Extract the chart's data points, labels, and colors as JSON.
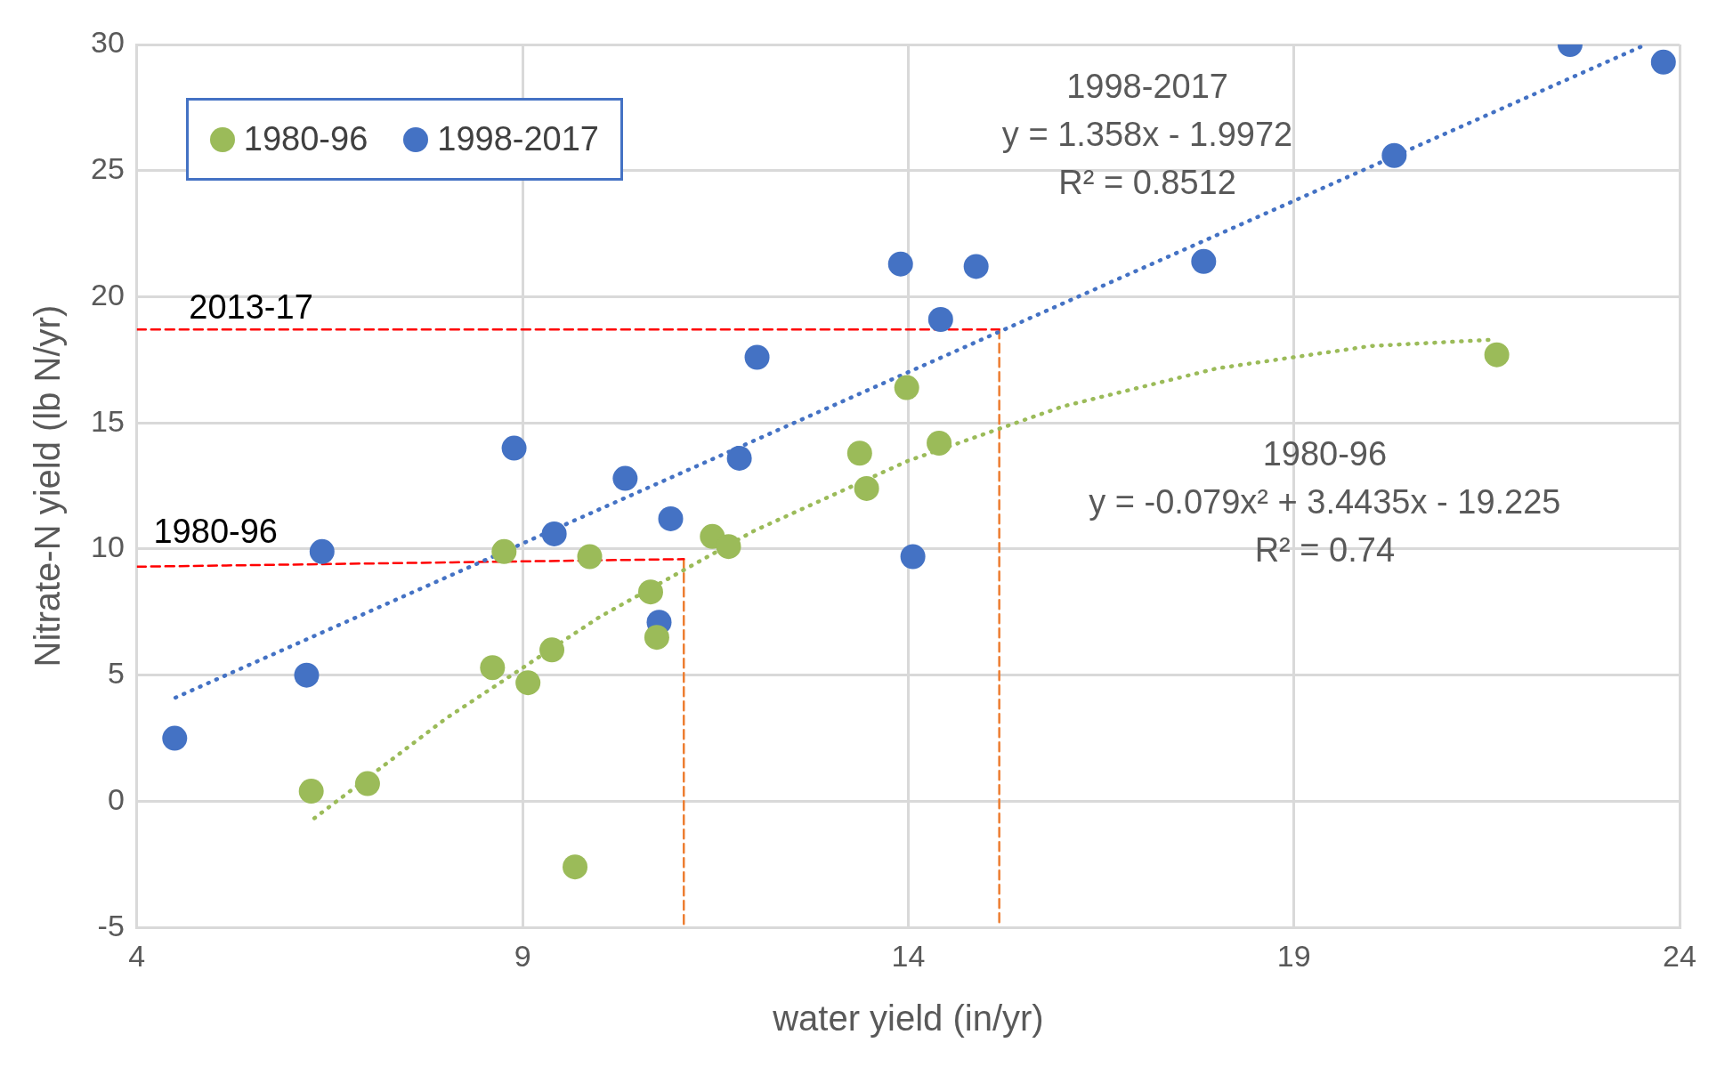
{
  "chart_data": {
    "type": "scatter",
    "xlabel": "water yield (in/yr)",
    "ylabel": "Nitrate-N yield (lb N/yr)",
    "xlim": [
      4,
      24
    ],
    "xticks": [
      4,
      9,
      14,
      19,
      24
    ],
    "ylim": [
      -5,
      30
    ],
    "yticks": [
      -5,
      0,
      5,
      10,
      15,
      20,
      25,
      30
    ],
    "grid": true,
    "legend": "top left",
    "marker": "circle",
    "series": [
      {
        "name": "1980-96",
        "color": "#9bbb59",
        "x": [
          6.26,
          6.99,
          8.61,
          8.76,
          9.07,
          9.38,
          9.68,
          9.87,
          10.66,
          10.74,
          11.46,
          11.67,
          13.37,
          13.46,
          13.98,
          14.4,
          21.63
        ],
        "values": [
          0.4,
          0.7,
          5.3,
          9.9,
          4.7,
          6.0,
          -2.6,
          9.7,
          8.3,
          6.5,
          10.5,
          10.1,
          13.8,
          12.4,
          16.4,
          14.2,
          17.7
        ]
      },
      {
        "name": "1998-2017",
        "color": "#4472c4",
        "x": [
          4.49,
          6.2,
          6.4,
          8.89,
          9.41,
          10.33,
          10.77,
          10.92,
          11.81,
          12.04,
          13.9,
          14.06,
          14.42,
          14.88,
          17.83,
          20.3,
          22.58,
          23.79
        ],
        "values": [
          2.5,
          5.0,
          9.9,
          14.0,
          10.6,
          12.8,
          7.1,
          11.2,
          13.6,
          17.6,
          21.3,
          9.7,
          19.1,
          21.2,
          21.4,
          25.6,
          30.0,
          29.3
        ]
      },
      {
        "type": "line",
        "color": "#9bbb59",
        "line_style": "dotted",
        "marker": "none",
        "x": [
          6.3,
          8,
          10,
          12,
          14,
          16,
          18,
          20,
          21.6
        ],
        "values": [
          -0.67,
          3.27,
          7.31,
          10.72,
          13.5,
          15.65,
          17.16,
          18.05,
          18.3
        ]
      },
      {
        "type": "line",
        "color": "#4472c4",
        "line_style": "dotted",
        "marker": "none",
        "x": [
          4.5,
          23.55
        ],
        "values": [
          4.11,
          29.98
        ]
      },
      {
        "type": "line",
        "color": "#ff0000",
        "line_style": "dashed",
        "marker": "none",
        "x": [
          4,
          15.18
        ],
        "values": [
          18.7,
          18.7
        ]
      },
      {
        "type": "line",
        "color": "#ff0000",
        "line_style": "dashed",
        "marker": "none",
        "x": [
          4,
          11.09
        ],
        "values": [
          9.3,
          9.6
        ]
      },
      {
        "type": "line",
        "color": "#ed7d31",
        "line_style": "dashed",
        "marker": "none",
        "x": [
          15.18,
          15.18
        ],
        "values": [
          18.7,
          -5
        ]
      },
      {
        "type": "line",
        "color": "#ed7d31",
        "line_style": "dashed",
        "marker": "none",
        "x": [
          11.09,
          11.09
        ],
        "values": [
          9.6,
          -5
        ]
      }
    ],
    "annotations": [
      "2013-17",
      "1980-96",
      "1998-2017\ny = 1.358x - 1.9972\nR² = 0.8512",
      "1980-96\ny = -0.079x² + 3.4435x - 19.225\nR² = 0.74"
    ]
  }
}
